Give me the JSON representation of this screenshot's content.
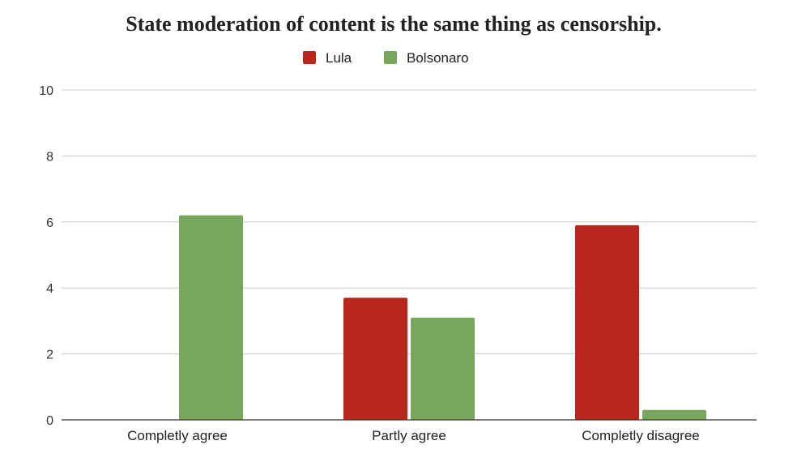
{
  "chart_data": {
    "type": "bar",
    "title": "State moderation of content is the same thing as censorship.",
    "categories": [
      "Completly agree",
      "Partly agree",
      "Completly disagree"
    ],
    "series": [
      {
        "name": "Lula",
        "color": "#b8271b",
        "values": [
          0,
          3.7,
          5.9
        ]
      },
      {
        "name": "Bolsonaro",
        "color": "#77a75a",
        "values": [
          6.2,
          3.1,
          0.3
        ]
      }
    ],
    "ylim": [
      0,
      10
    ],
    "yticks": [
      0,
      2,
      4,
      6,
      8,
      10
    ],
    "grid": true,
    "legend_position": "top-center",
    "xlabel": "",
    "ylabel": ""
  }
}
